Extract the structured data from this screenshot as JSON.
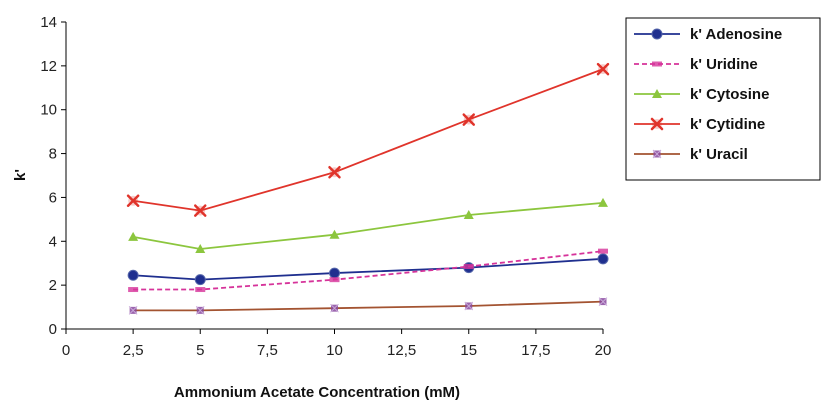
{
  "chart_data": {
    "type": "line",
    "xlabel": "Ammonium Acetate Concentration (mM)",
    "ylabel": "k'",
    "xlim": [
      0,
      20
    ],
    "ylim": [
      0,
      14
    ],
    "x_ticks": [
      "0",
      "2,5",
      "5",
      "7,5",
      "10",
      "12,5",
      "15",
      "17,5",
      "20"
    ],
    "x_tick_values": [
      0,
      2.5,
      5,
      7.5,
      10,
      12.5,
      15,
      17.5,
      20
    ],
    "y_ticks": [
      "0",
      "2",
      "4",
      "6",
      "8",
      "10",
      "12",
      "14"
    ],
    "y_tick_values": [
      0,
      2,
      4,
      6,
      8,
      10,
      12,
      14
    ],
    "grid": false,
    "legend_position": "top-right",
    "x": [
      2.5,
      5,
      10,
      15,
      20
    ],
    "series": [
      {
        "name": "k' Adenosine",
        "values": [
          2.45,
          2.25,
          2.55,
          2.8,
          3.2
        ],
        "color": "#1f2f8f",
        "marker": "circle",
        "dash": false
      },
      {
        "name": "k' Uridine",
        "values": [
          1.8,
          1.8,
          2.25,
          2.85,
          3.55
        ],
        "color": "#d6339a",
        "marker": "bar",
        "dash": true
      },
      {
        "name": "k' Cytosine",
        "values": [
          4.2,
          3.65,
          4.3,
          5.2,
          5.75
        ],
        "color": "#8cc63e",
        "marker": "triangle",
        "dash": false
      },
      {
        "name": "k' Cytidine",
        "values": [
          5.85,
          5.4,
          7.15,
          9.55,
          11.85
        ],
        "color": "#e0342b",
        "marker": "x",
        "dash": false
      },
      {
        "name": "k' Uracil",
        "values": [
          0.85,
          0.85,
          0.95,
          1.05,
          1.25
        ],
        "color": "#a35331",
        "marker": "star",
        "dash": false
      }
    ]
  }
}
